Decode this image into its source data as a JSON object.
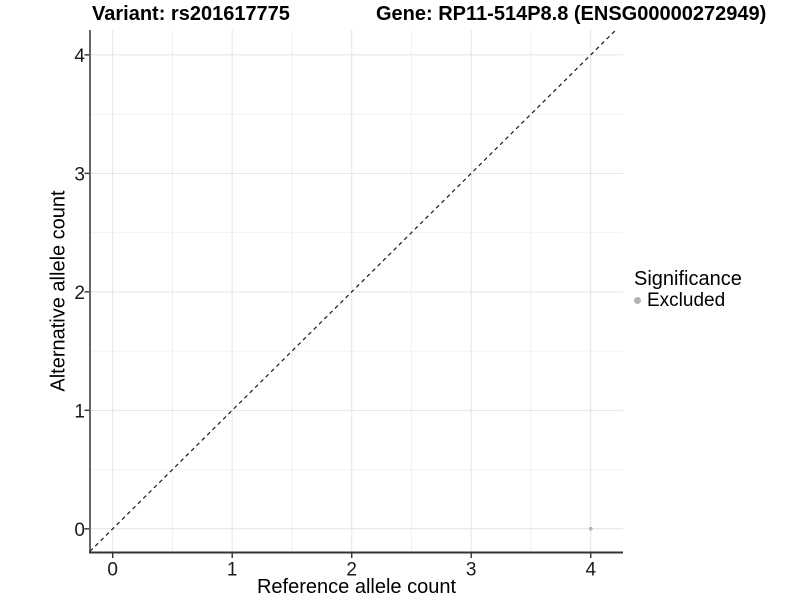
{
  "header": {
    "variant_title": "Variant: rs201617775",
    "gene_title": "Gene: RP11-514P8.8 (ENSG00000272949)"
  },
  "axes": {
    "x_label": "Reference allele count",
    "y_label": "Alternative allele count"
  },
  "legend": {
    "title": "Significance",
    "items": [
      {
        "label": "Excluded",
        "color": "#b3b3b3",
        "marker": "dot"
      }
    ]
  },
  "chart_data": {
    "type": "scatter",
    "title": "Variant: rs201617775 — Gene: RP11-514P8.8 (ENSG00000272949)",
    "xlabel": "Reference allele count",
    "ylabel": "Alternative allele count",
    "xlim": [
      -0.19,
      4.27
    ],
    "ylim": [
      -0.2,
      4.21
    ],
    "x_ticks": [
      0,
      1,
      2,
      3,
      4
    ],
    "y_ticks": [
      0,
      1,
      2,
      3,
      4
    ],
    "x_minor": [
      0.5,
      1.5,
      2.5,
      3.5
    ],
    "y_minor": [
      0.5,
      1.5,
      2.5,
      3.5
    ],
    "grid": true,
    "legend_position": "right",
    "series": [
      {
        "name": "Excluded",
        "color": "#b3b3b3",
        "points": [
          {
            "x": 4,
            "y": 0
          }
        ]
      }
    ],
    "reference_line": {
      "type": "identity",
      "slope": 1,
      "intercept": 0,
      "style": "dashed",
      "color": "#1a1a1a"
    },
    "colors": {
      "background": "#ffffff",
      "grid_major": "#e4e4e4",
      "grid_minor": "#f2f2f2",
      "axis": "#333333",
      "tick_text": "#1a1a1a"
    }
  }
}
